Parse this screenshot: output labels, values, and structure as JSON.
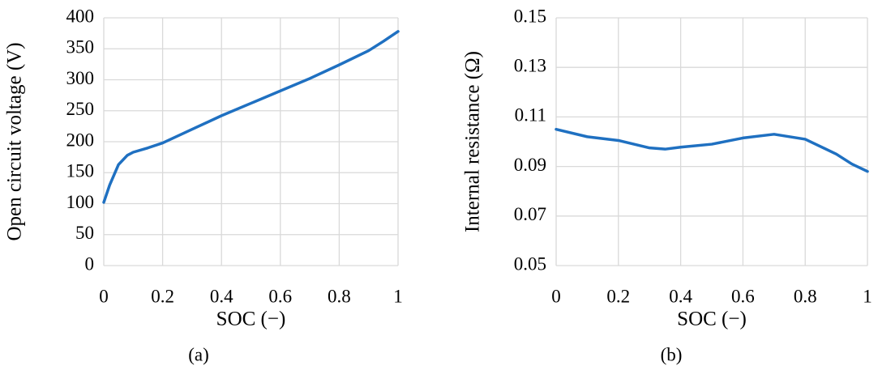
{
  "chart_data": [
    {
      "type": "line",
      "xlabel": "SOC (−)",
      "ylabel": "Open circuit voltage (V)",
      "caption": "(a)",
      "x": [
        0,
        0.02,
        0.05,
        0.08,
        0.1,
        0.15,
        0.2,
        0.3,
        0.4,
        0.5,
        0.6,
        0.7,
        0.8,
        0.9,
        0.95,
        1
      ],
      "series": [
        {
          "color": "#1f70c1",
          "values": [
            102,
            130,
            163,
            178,
            183,
            190,
            198,
            220,
            242,
            262,
            282,
            302,
            324,
            347,
            362,
            378
          ]
        }
      ],
      "xlim": [
        0,
        1
      ],
      "xticks": [
        0,
        0.2,
        0.4,
        0.6,
        0.8,
        1
      ],
      "ylim": [
        0,
        400
      ],
      "yticks": [
        0,
        50,
        100,
        150,
        200,
        250,
        300,
        350,
        400
      ],
      "grid": true
    },
    {
      "type": "line",
      "xlabel": "SOC (−)",
      "ylabel": "Internal resistance (Ω)",
      "caption": "(b)",
      "x": [
        0,
        0.1,
        0.2,
        0.3,
        0.35,
        0.4,
        0.5,
        0.6,
        0.7,
        0.8,
        0.9,
        0.95,
        1
      ],
      "series": [
        {
          "color": "#1f70c1",
          "values": [
            0.105,
            0.102,
            0.1005,
            0.0975,
            0.097,
            0.0978,
            0.099,
            0.1015,
            0.103,
            0.101,
            0.095,
            0.091,
            0.088
          ]
        }
      ],
      "xlim": [
        0,
        1
      ],
      "xticks": [
        0,
        0.2,
        0.4,
        0.6,
        0.8,
        1
      ],
      "ylim": [
        0.05,
        0.15
      ],
      "yticks": [
        0.05,
        0.07,
        0.09,
        0.11,
        0.13,
        0.15
      ],
      "grid": true
    }
  ]
}
